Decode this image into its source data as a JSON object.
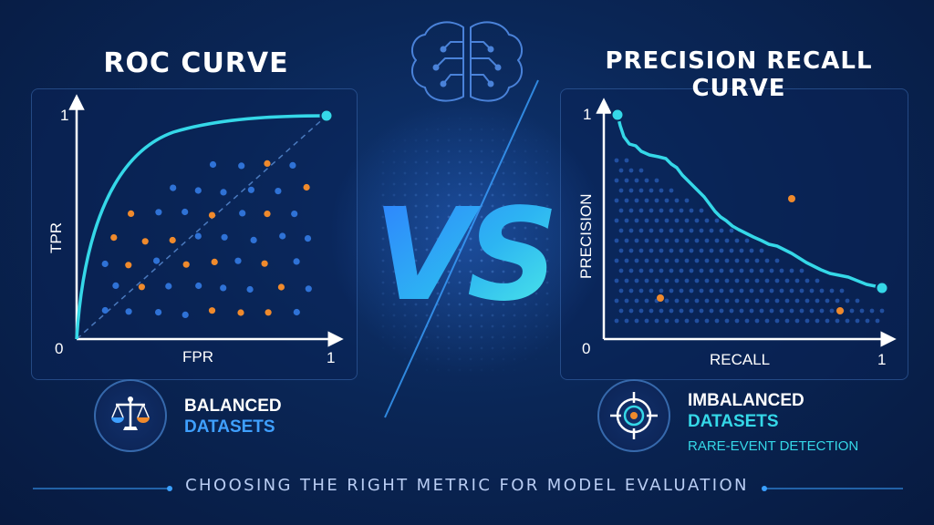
{
  "roc": {
    "title": "ROC CURVE",
    "y_label": "TPR",
    "x_label": "FPR",
    "origin": "0",
    "y_max": "1",
    "x_max": "1",
    "badge_line1": "BALANCED",
    "badge_line2": "DATASETS",
    "badge_icon": "balance-scale-icon"
  },
  "center": {
    "vs": "VS",
    "icon": "brain-circuit-icon"
  },
  "pr": {
    "title": "PRECISION RECALL CURVE",
    "y_label": "PRECISION",
    "x_label": "RECALL",
    "origin": "0",
    "y_max": "1",
    "x_max": "1",
    "badge_line1": "IMBALANCED",
    "badge_line2": "DATASETS",
    "badge_line3": "RARE-EVENT DETECTION",
    "badge_icon": "target-icon"
  },
  "footer": "CHOOSING THE RIGHT METRIC FOR MODEL EVALUATION",
  "colors": {
    "background": "#0a2656",
    "curve": "#35d8e8",
    "positive": "#f08a2c",
    "negative": "#2f72d6",
    "accent_blue": "#3fa0ff"
  }
}
